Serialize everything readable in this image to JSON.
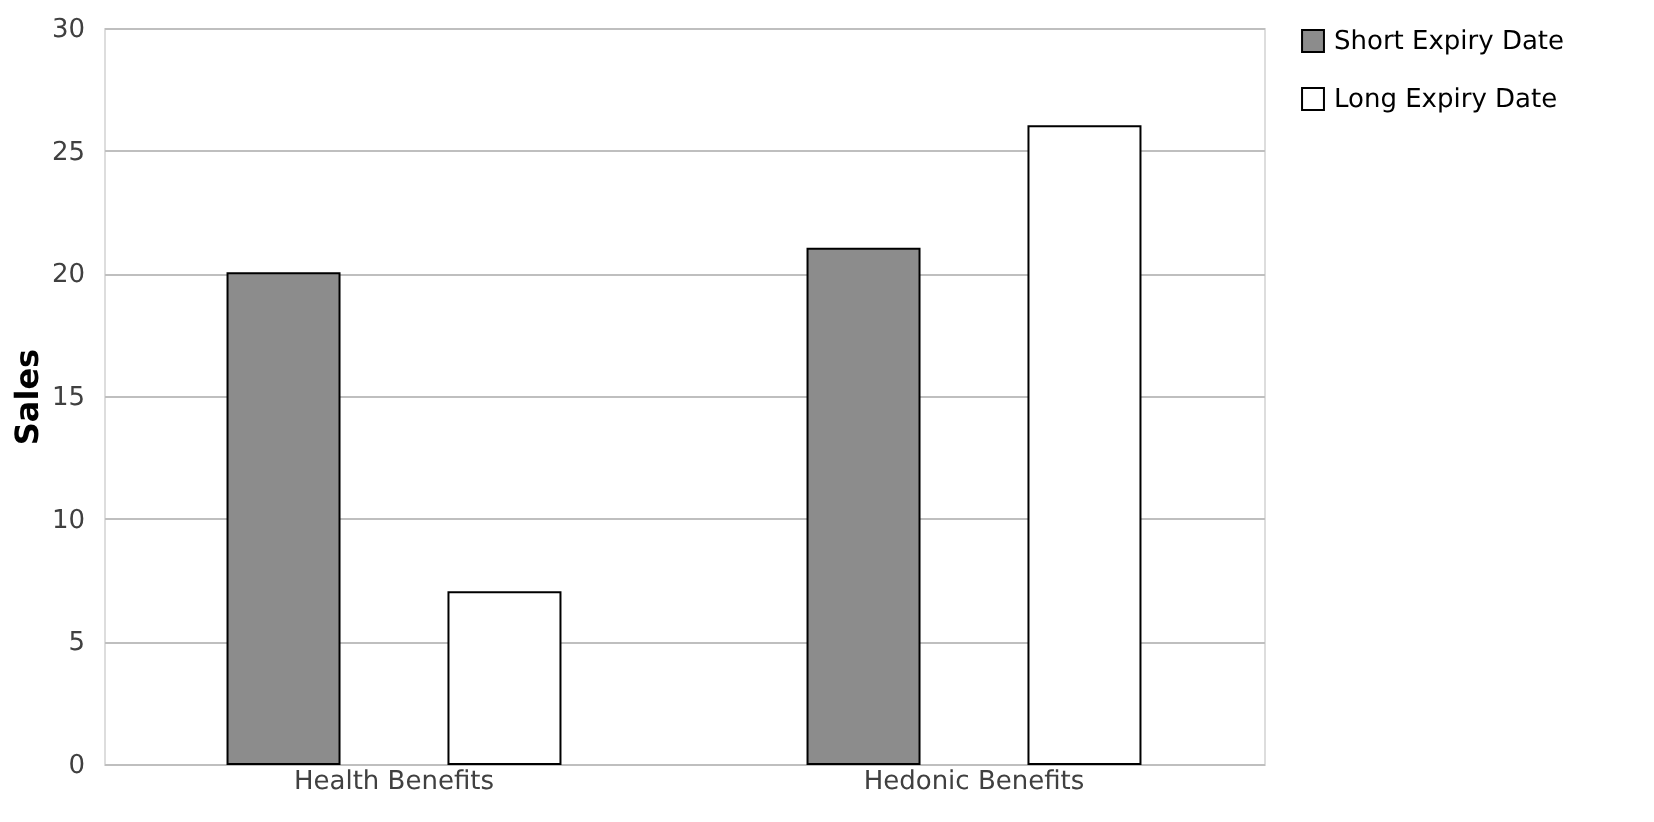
{
  "chart_data": {
    "type": "bar",
    "ylabel": "Sales",
    "categories": [
      "Health Benefits",
      "Hedonic Benefits"
    ],
    "series": [
      {
        "name": "Short Expiry Date",
        "color": "#8c8c8c",
        "values": [
          20,
          21
        ]
      },
      {
        "name": "Long Expiry Date",
        "color": "#ffffff",
        "values": [
          7,
          26
        ]
      }
    ],
    "ylim": [
      0,
      30
    ],
    "yticks": [
      0,
      5,
      10,
      15,
      20,
      25,
      30
    ],
    "grid": "y",
    "legend": "right"
  }
}
